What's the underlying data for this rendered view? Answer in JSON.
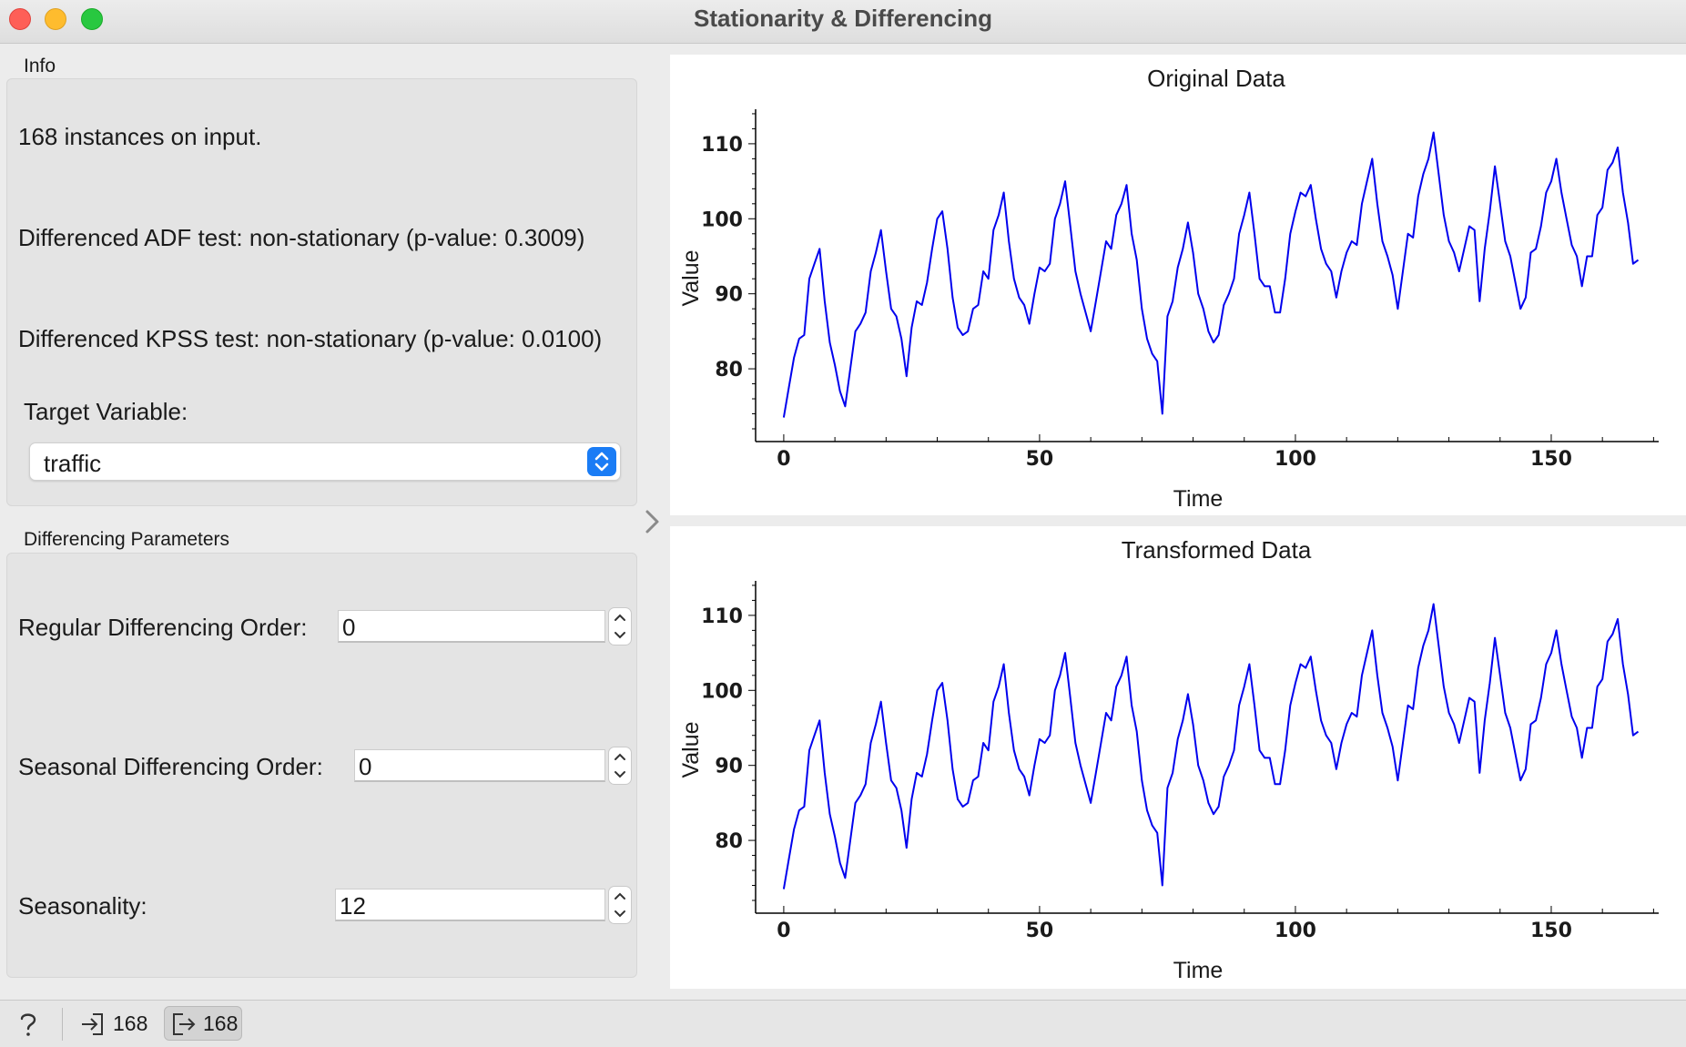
{
  "window": {
    "title": "Stationarity & Differencing"
  },
  "info": {
    "group_label": "Info",
    "instances_text": "168 instances on input.",
    "adf_text": "Differenced ADF test: non-stationary (p-value: 0.3009)",
    "kpss_text": "Differenced KPSS test: non-stationary (p-value: 0.0100)",
    "target_label": "Target Variable:",
    "target_value": "traffic"
  },
  "params": {
    "group_label": "Differencing Parameters",
    "regular_label": "Regular Differencing Order:",
    "regular_value": "0",
    "seasonal_label": "Seasonal Differencing Order:",
    "seasonal_value": "0",
    "seasonality_label": "Seasonality:",
    "seasonality_value": "12"
  },
  "status": {
    "input_count": "168",
    "output_count": "168"
  },
  "colors": {
    "series": "#0000ee",
    "accent": "#1a7cf5"
  },
  "chart_data": [
    {
      "type": "line",
      "title": "Original Data",
      "xlabel": "Time",
      "ylabel": "Value",
      "xlim": [
        -5.5,
        171
      ],
      "ylim": [
        70.3,
        114.6
      ],
      "xticks": [
        0,
        50,
        100,
        150
      ],
      "yticks": [
        80,
        90,
        100,
        110
      ],
      "series": [
        {
          "x_start": 0,
          "values": [
            73.5,
            77.5,
            81.5,
            84,
            84.5,
            92,
            94,
            96,
            89,
            83.5,
            80.5,
            77,
            75,
            80,
            85,
            86,
            87.5,
            93,
            95.5,
            98.5,
            93,
            88,
            87,
            84,
            79,
            85.5,
            89,
            88.5,
            91.5,
            96,
            100,
            101,
            96,
            89.5,
            85.5,
            84.5,
            85,
            88,
            88.5,
            93,
            92,
            98.5,
            100.5,
            103.5,
            97,
            92,
            89.5,
            88.5,
            86,
            90,
            93.5,
            93,
            94,
            100,
            102,
            105,
            99,
            93,
            90,
            87.5,
            85,
            89,
            93,
            97,
            96,
            100.5,
            102,
            104.5,
            98,
            94.5,
            88,
            84,
            82,
            81,
            74,
            87,
            89,
            93.5,
            96,
            99.5,
            95.5,
            90,
            88,
            85,
            83.5,
            84.5,
            88.5,
            90,
            92,
            98,
            100.5,
            103.5,
            98,
            92,
            91,
            91,
            87.5,
            87.5,
            92,
            98,
            101,
            103.5,
            103,
            104.5,
            100,
            96,
            94,
            93,
            89.5,
            93,
            95.5,
            97,
            96.5,
            102,
            105,
            108,
            102,
            97,
            95,
            92.5,
            88,
            93,
            98,
            97.5,
            103,
            106,
            108,
            111.5,
            106,
            100.5,
            97,
            95.5,
            93,
            96,
            99,
            98.5,
            89,
            96,
            101,
            107,
            102,
            97,
            95,
            91.5,
            88,
            89.5,
            95.5,
            96,
            99,
            103.5,
            105,
            108,
            103.5,
            100,
            96.5,
            95,
            91,
            95,
            95,
            100.5,
            101.5,
            106.5,
            107.5,
            109.5,
            103.5,
            99.5,
            94,
            94.5
          ]
        }
      ]
    },
    {
      "type": "line",
      "title": "Transformed Data",
      "xlabel": "Time",
      "ylabel": "Value",
      "xlim": [
        -5.5,
        171
      ],
      "ylim": [
        70.3,
        114.6
      ],
      "xticks": [
        0,
        50,
        100,
        150
      ],
      "yticks": [
        80,
        90,
        100,
        110
      ],
      "series": [
        {
          "x_start": 0,
          "values": [
            73.5,
            77.5,
            81.5,
            84,
            84.5,
            92,
            94,
            96,
            89,
            83.5,
            80.5,
            77,
            75,
            80,
            85,
            86,
            87.5,
            93,
            95.5,
            98.5,
            93,
            88,
            87,
            84,
            79,
            85.5,
            89,
            88.5,
            91.5,
            96,
            100,
            101,
            96,
            89.5,
            85.5,
            84.5,
            85,
            88,
            88.5,
            93,
            92,
            98.5,
            100.5,
            103.5,
            97,
            92,
            89.5,
            88.5,
            86,
            90,
            93.5,
            93,
            94,
            100,
            102,
            105,
            99,
            93,
            90,
            87.5,
            85,
            89,
            93,
            97,
            96,
            100.5,
            102,
            104.5,
            98,
            94.5,
            88,
            84,
            82,
            81,
            74,
            87,
            89,
            93.5,
            96,
            99.5,
            95.5,
            90,
            88,
            85,
            83.5,
            84.5,
            88.5,
            90,
            92,
            98,
            100.5,
            103.5,
            98,
            92,
            91,
            91,
            87.5,
            87.5,
            92,
            98,
            101,
            103.5,
            103,
            104.5,
            100,
            96,
            94,
            93,
            89.5,
            93,
            95.5,
            97,
            96.5,
            102,
            105,
            108,
            102,
            97,
            95,
            92.5,
            88,
            93,
            98,
            97.5,
            103,
            106,
            108,
            111.5,
            106,
            100.5,
            97,
            95.5,
            93,
            96,
            99,
            98.5,
            89,
            96,
            101,
            107,
            102,
            97,
            95,
            91.5,
            88,
            89.5,
            95.5,
            96,
            99,
            103.5,
            105,
            108,
            103.5,
            100,
            96.5,
            95,
            91,
            95,
            95,
            100.5,
            101.5,
            106.5,
            107.5,
            109.5,
            103.5,
            99.5,
            94,
            94.5
          ]
        }
      ]
    }
  ]
}
